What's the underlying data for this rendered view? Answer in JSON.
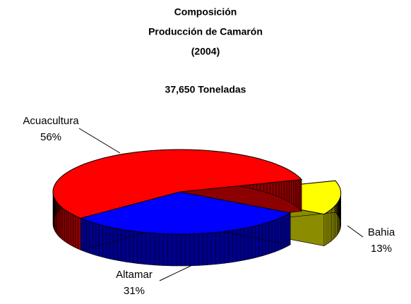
{
  "chart_data": {
    "type": "pie3d",
    "title": [
      "Composición",
      "Producción de Camarón",
      "(2004)"
    ],
    "subtitle": "37,650 Toneladas",
    "categories": [
      "Acuacultura",
      "Altamar",
      "Bahia"
    ],
    "values": [
      56,
      31,
      13
    ],
    "value_labels": [
      "56%",
      "31%",
      "13%"
    ],
    "colors": [
      "#ff0000",
      "#0000ff",
      "#ffff00"
    ]
  }
}
